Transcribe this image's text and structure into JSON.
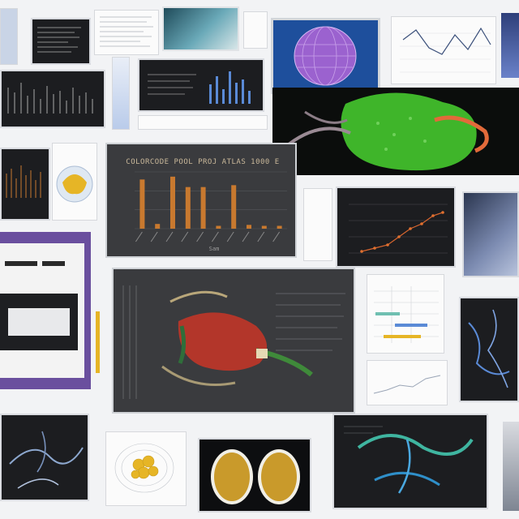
{
  "collage": {
    "bar_panel": {
      "title": "COLORCODE POOL PROJ ATLAS 1000 E",
      "xlabel": "Sam"
    }
  },
  "chart_data": {
    "type": "bar",
    "title": "COLORCODE POOL PROJ ATLAS 1000 E",
    "xlabel": "Sam",
    "ylabel": "",
    "categories": [
      "",
      "",
      "",
      "",
      "",
      "",
      "",
      "",
      "",
      ""
    ],
    "values": [
      52,
      5,
      55,
      44,
      44,
      3,
      46,
      4,
      3,
      3
    ],
    "ylim": [
      0,
      60
    ],
    "grid": true,
    "bar_color": "#c8792f"
  },
  "colors": {
    "background": "#f2f3f5",
    "panel_dark": "#1c1d20",
    "accent_green": "#3fb52a",
    "accent_purple": "#8a5fc0",
    "accent_blue": "#5a8ad6",
    "accent_red": "#b3362a",
    "accent_yellow": "#e6b526"
  }
}
